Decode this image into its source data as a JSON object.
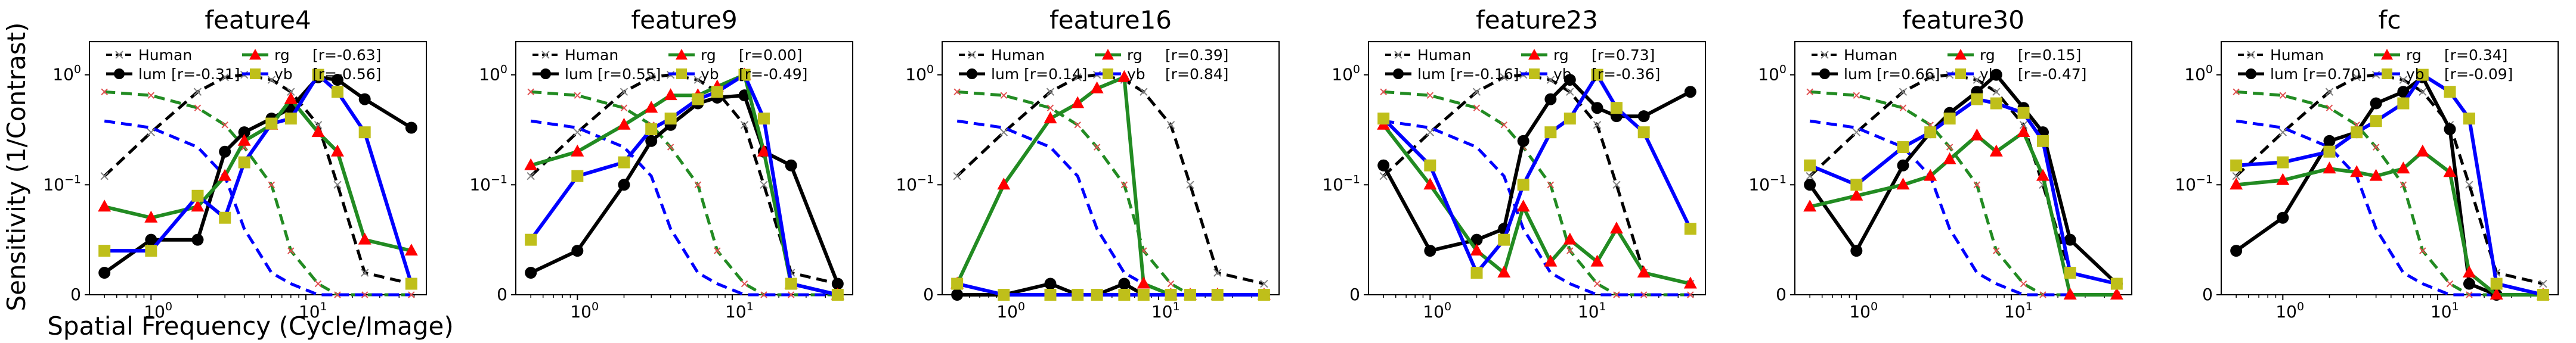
{
  "figure": {
    "ylabel": "Sensitivity (1/Contrast)",
    "xlabel": "Spatial Frequency (Cycle/Image)"
  },
  "colors": {
    "human": "#000000",
    "human_marker": "#808080",
    "lum": "#000000",
    "rg_line": "#008000",
    "rg_marker": "#ff0000",
    "yb_line": "#0000ff",
    "yb_marker": "#bfbf1a",
    "model_lum": "#000000",
    "model_rg": "#228b22",
    "model_yb": "#0000ff"
  },
  "chart_data": [
    {
      "type": "line",
      "title": "feature4",
      "x_scale": "log",
      "y_scale": "symlog",
      "xlim": [
        0.4,
        60
      ],
      "ylim": [
        0,
        2
      ],
      "x_ticks": [
        "10^0",
        "10^1"
      ],
      "y_ticks": [
        "0",
        "10^-1",
        "10^0"
      ],
      "legend": {
        "labels": [
          "Human",
          "lum [r=-0.31]",
          "rg",
          "yb",
          "[r=-0.63]",
          "[r=-0.56]"
        ]
      },
      "series": [
        {
          "name": "lum",
          "x": [
            0.5,
            1,
            2,
            3,
            4,
            6,
            8,
            12,
            16,
            24,
            48
          ],
          "y": [
            0.02,
            0.05,
            0.05,
            0.2,
            0.3,
            0.4,
            0.5,
            0.95,
            0.9,
            0.6,
            0.33
          ]
        },
        {
          "name": "rg",
          "x": [
            0.5,
            1,
            2,
            3,
            4,
            6,
            8,
            12,
            16,
            24,
            48
          ],
          "y": [
            0.08,
            0.07,
            0.08,
            0.12,
            0.25,
            0.35,
            0.6,
            0.3,
            0.2,
            0.05,
            0.04
          ]
        },
        {
          "name": "yb",
          "x": [
            0.5,
            1,
            2,
            3,
            4,
            6,
            8,
            12,
            16,
            24,
            48
          ],
          "y": [
            0.04,
            0.04,
            0.09,
            0.07,
            0.16,
            0.36,
            0.4,
            1.0,
            0.7,
            0.3,
            0.01
          ]
        }
      ]
    },
    {
      "type": "line",
      "title": "feature9",
      "x_scale": "log",
      "y_scale": "symlog",
      "xlim": [
        0.4,
        60
      ],
      "ylim": [
        0,
        2
      ],
      "x_ticks": [
        "10^0",
        "10^1"
      ],
      "y_ticks": [
        "0",
        "10^-1",
        "10^0"
      ],
      "legend": {
        "labels": [
          "Human",
          "lum [r=0.55]",
          "rg",
          "yb",
          "[r=0.00]",
          "[r=-0.49]"
        ]
      },
      "series": [
        {
          "name": "lum",
          "x": [
            0.5,
            1,
            2,
            3,
            4,
            6,
            8,
            12,
            16,
            24,
            48
          ],
          "y": [
            0.02,
            0.04,
            0.1,
            0.25,
            0.35,
            0.55,
            0.62,
            0.65,
            0.2,
            0.15,
            0.01
          ]
        },
        {
          "name": "rg",
          "x": [
            0.5,
            1,
            2,
            3,
            4,
            6,
            8,
            12,
            16,
            24,
            48
          ],
          "y": [
            0.15,
            0.2,
            0.35,
            0.5,
            0.65,
            0.65,
            0.78,
            1.0,
            0.2,
            0.01,
            0.0
          ]
        },
        {
          "name": "yb",
          "x": [
            0.5,
            1,
            2,
            3,
            4,
            6,
            8,
            12,
            16,
            24,
            48
          ],
          "y": [
            0.05,
            0.12,
            0.16,
            0.32,
            0.4,
            0.6,
            0.7,
            1.0,
            0.4,
            0.01,
            0.0
          ]
        }
      ]
    },
    {
      "type": "line",
      "title": "feature16",
      "x_scale": "log",
      "y_scale": "symlog",
      "xlim": [
        0.4,
        60
      ],
      "ylim": [
        0,
        2
      ],
      "x_ticks": [
        "10^0",
        "10^1"
      ],
      "y_ticks": [
        "0",
        "10^-1",
        "10^0"
      ],
      "legend": {
        "labels": [
          "Human",
          "lum [r=0.14]",
          "rg",
          "yb",
          "[r=0.39]",
          "[r=0.84]"
        ]
      },
      "series": [
        {
          "name": "lum",
          "x": [
            0.5,
            1,
            2,
            3,
            4,
            6,
            8,
            12,
            16,
            24,
            48
          ],
          "y": [
            0.0,
            0.0,
            0.01,
            0.0,
            0.0,
            0.01,
            0.0,
            0.0,
            0.0,
            0.0,
            0.0
          ]
        },
        {
          "name": "rg",
          "x": [
            0.5,
            1,
            2,
            3,
            4,
            6,
            8,
            12,
            16,
            24,
            48
          ],
          "y": [
            0.01,
            0.1,
            0.4,
            0.55,
            0.75,
            0.95,
            0.01,
            0.0,
            0.0,
            0.0,
            0.0
          ]
        },
        {
          "name": "yb",
          "x": [
            0.5,
            1,
            2,
            3,
            4,
            6,
            8,
            12,
            16,
            24,
            48
          ],
          "y": [
            0.01,
            0.0,
            0.0,
            0.0,
            0.0,
            0.0,
            0.0,
            0.0,
            0.0,
            0.0,
            0.0
          ]
        }
      ]
    },
    {
      "type": "line",
      "title": "feature23",
      "x_scale": "log",
      "y_scale": "symlog",
      "xlim": [
        0.4,
        60
      ],
      "ylim": [
        0,
        2
      ],
      "x_ticks": [
        "10^0",
        "10^1"
      ],
      "y_ticks": [
        "0",
        "10^-1",
        "10^0"
      ],
      "legend": {
        "labels": [
          "Human",
          "lum [r=-0.16]",
          "rg",
          "yb",
          "[r=0.73]",
          "[r=-0.36]"
        ]
      },
      "series": [
        {
          "name": "lum",
          "x": [
            0.5,
            1,
            2,
            3,
            4,
            6,
            8,
            12,
            16,
            24,
            48
          ],
          "y": [
            0.15,
            0.04,
            0.05,
            0.06,
            0.25,
            0.6,
            0.9,
            0.5,
            0.42,
            0.42,
            0.7
          ]
        },
        {
          "name": "rg",
          "x": [
            0.5,
            1,
            2,
            3,
            4,
            6,
            8,
            12,
            16,
            24,
            48
          ],
          "y": [
            0.35,
            0.1,
            0.04,
            0.02,
            0.08,
            0.03,
            0.05,
            0.03,
            0.06,
            0.02,
            0.01
          ]
        },
        {
          "name": "yb",
          "x": [
            0.5,
            1,
            2,
            3,
            4,
            6,
            8,
            12,
            16,
            24,
            48
          ],
          "y": [
            0.4,
            0.15,
            0.02,
            0.05,
            0.1,
            0.3,
            0.4,
            1.0,
            0.5,
            0.3,
            0.06
          ]
        }
      ]
    },
    {
      "type": "line",
      "title": "feature30",
      "x_scale": "log",
      "y_scale": "symlog",
      "xlim": [
        0.4,
        60
      ],
      "ylim": [
        0,
        2
      ],
      "x_ticks": [
        "10^0",
        "10^1"
      ],
      "y_ticks": [
        "0",
        "10^-1",
        "10^0"
      ],
      "legend": {
        "labels": [
          "Human",
          "lum [r=0.66]",
          "rg",
          "yb",
          "[r=0.15]",
          "[r=-0.47]"
        ]
      },
      "series": [
        {
          "name": "lum",
          "x": [
            0.5,
            1,
            2,
            3,
            4,
            6,
            8,
            12,
            16,
            24,
            48
          ],
          "y": [
            0.1,
            0.04,
            0.15,
            0.3,
            0.45,
            0.7,
            1.0,
            0.5,
            0.3,
            0.05,
            0.01
          ]
        },
        {
          "name": "rg",
          "x": [
            0.5,
            1,
            2,
            3,
            4,
            6,
            8,
            12,
            16,
            24,
            48
          ],
          "y": [
            0.08,
            0.09,
            0.1,
            0.12,
            0.17,
            0.28,
            0.2,
            0.3,
            0.12,
            0.0,
            0.0
          ]
        },
        {
          "name": "yb",
          "x": [
            0.5,
            1,
            2,
            3,
            4,
            6,
            8,
            12,
            16,
            24,
            48
          ],
          "y": [
            0.15,
            0.1,
            0.22,
            0.3,
            0.4,
            0.6,
            0.55,
            0.45,
            0.25,
            0.02,
            0.01
          ]
        }
      ]
    },
    {
      "type": "line",
      "title": "fc",
      "x_scale": "log",
      "y_scale": "symlog",
      "xlim": [
        0.4,
        60
      ],
      "ylim": [
        0,
        2
      ],
      "x_ticks": [
        "10^0",
        "10^1"
      ],
      "y_ticks": [
        "0",
        "10^-1",
        "10^0"
      ],
      "legend": {
        "labels": [
          "Human",
          "lum [r=0.70]",
          "rg",
          "yb",
          "[r=0.34]",
          "[r=-0.09]"
        ]
      },
      "series": [
        {
          "name": "lum",
          "x": [
            0.5,
            1,
            2,
            3,
            4,
            6,
            8,
            12,
            16,
            24,
            48
          ],
          "y": [
            0.04,
            0.07,
            0.25,
            0.3,
            0.55,
            0.7,
            0.95,
            0.32,
            0.01,
            0.0,
            0.0
          ]
        },
        {
          "name": "rg",
          "x": [
            0.5,
            1,
            2,
            3,
            4,
            6,
            8,
            12,
            16,
            24,
            48
          ],
          "y": [
            0.1,
            0.11,
            0.14,
            0.13,
            0.12,
            0.14,
            0.2,
            0.13,
            0.02,
            0.0,
            0.0
          ]
        },
        {
          "name": "yb",
          "x": [
            0.5,
            1,
            2,
            3,
            4,
            6,
            8,
            12,
            16,
            24,
            48
          ],
          "y": [
            0.15,
            0.16,
            0.2,
            0.3,
            0.38,
            0.55,
            1.0,
            0.7,
            0.4,
            0.01,
            0.0
          ]
        }
      ]
    }
  ]
}
